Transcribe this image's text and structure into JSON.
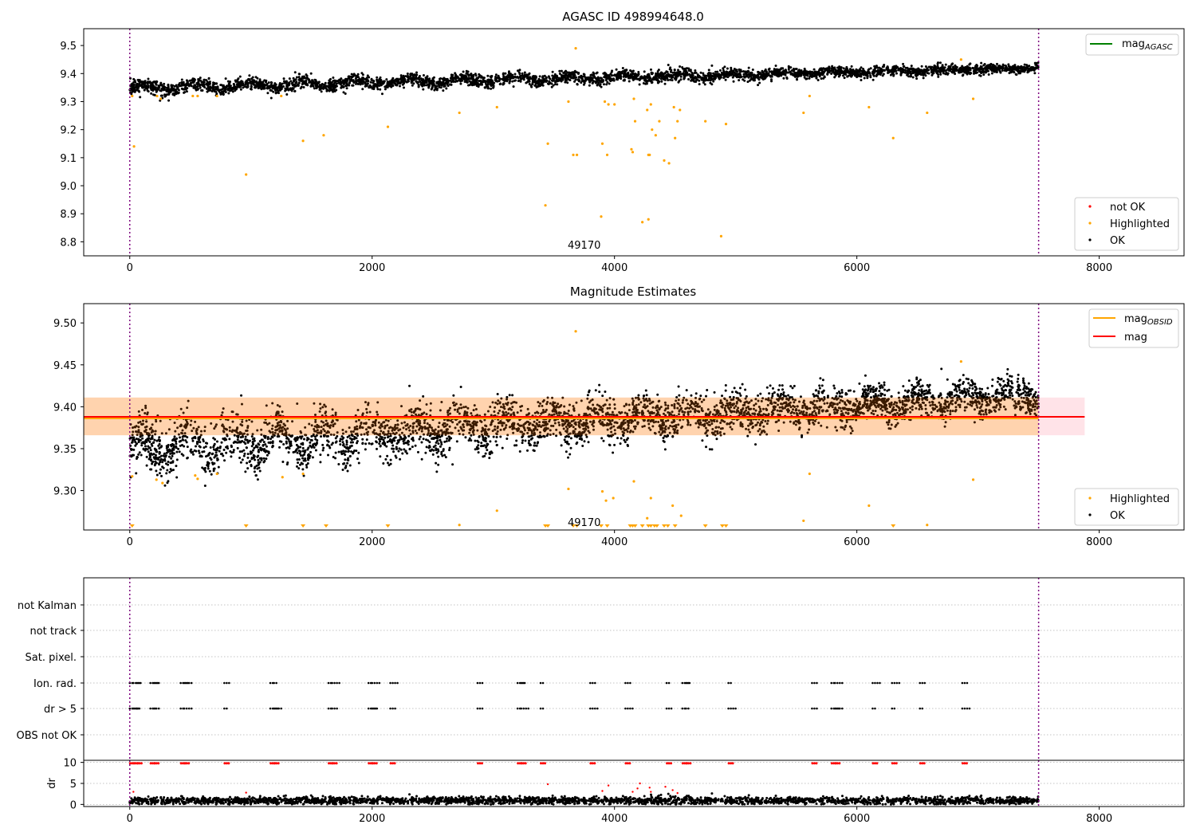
{
  "chart_data": [
    {
      "id": "agasc",
      "type": "scatter",
      "title": "AGASC ID 498994648.0",
      "xlim": [
        -380,
        8700
      ],
      "ylim": [
        8.75,
        9.56
      ],
      "xticks": [
        "0",
        "2000",
        "4000",
        "6000",
        "8000"
      ],
      "yticks": [
        "8.8",
        "8.9",
        "9.0",
        "9.1",
        "9.2",
        "9.3",
        "9.4",
        "9.5"
      ],
      "annotation": {
        "text": "49170",
        "x": 3750,
        "y": 8.77
      },
      "vlines_x": [
        0,
        7500
      ],
      "band": {
        "x_end": 7500,
        "start_low": 9.325,
        "start_high": 9.37,
        "end_low": 9.405,
        "end_high": 9.435
      },
      "series": [
        {
          "name": "not OK",
          "color": "#ff0000",
          "points": []
        },
        {
          "name": "Highlighted",
          "color": "#ffa500",
          "points": [
            [
              20,
              9.32
            ],
            [
              35,
              9.14
            ],
            [
              225,
              9.32
            ],
            [
              255,
              9.31
            ],
            [
              520,
              9.32
            ],
            [
              560,
              9.32
            ],
            [
              720,
              9.32
            ],
            [
              960,
              9.04
            ],
            [
              1250,
              9.32
            ],
            [
              1430,
              9.16
            ],
            [
              1600,
              9.18
            ],
            [
              2130,
              9.21
            ],
            [
              2720,
              9.26
            ],
            [
              3030,
              9.28
            ],
            [
              3430,
              8.93
            ],
            [
              3450,
              9.15
            ],
            [
              3620,
              9.3
            ],
            [
              3660,
              9.11
            ],
            [
              3690,
              9.11
            ],
            [
              3680,
              9.49
            ],
            [
              3890,
              8.89
            ],
            [
              3900,
              9.15
            ],
            [
              3920,
              9.3
            ],
            [
              3940,
              9.11
            ],
            [
              3950,
              9.29
            ],
            [
              4000,
              9.29
            ],
            [
              4140,
              9.13
            ],
            [
              4150,
              9.12
            ],
            [
              4160,
              9.31
            ],
            [
              4170,
              9.23
            ],
            [
              4230,
              8.87
            ],
            [
              4280,
              8.88
            ],
            [
              4270,
              9.27
            ],
            [
              4280,
              9.11
            ],
            [
              4290,
              9.11
            ],
            [
              4300,
              9.29
            ],
            [
              4310,
              9.2
            ],
            [
              4340,
              9.18
            ],
            [
              4370,
              9.23
            ],
            [
              4410,
              9.09
            ],
            [
              4450,
              9.08
            ],
            [
              4490,
              9.28
            ],
            [
              4500,
              9.17
            ],
            [
              4520,
              9.23
            ],
            [
              4540,
              9.27
            ],
            [
              4750,
              9.23
            ],
            [
              4880,
              8.82
            ],
            [
              4920,
              9.22
            ],
            [
              5560,
              9.26
            ],
            [
              5610,
              9.32
            ],
            [
              6100,
              9.28
            ],
            [
              6300,
              9.17
            ],
            [
              6580,
              9.26
            ],
            [
              6860,
              9.45
            ],
            [
              6960,
              9.31
            ]
          ]
        },
        {
          "name": "OK",
          "color": "#000000",
          "points": []
        }
      ],
      "legend_lines": [
        {
          "label": "mag",
          "sub": "AGASC",
          "color": "#008000"
        }
      ],
      "legend_markers": [
        "not OK",
        "Highlighted",
        "OK"
      ]
    },
    {
      "id": "mag",
      "type": "scatter",
      "title": "Magnitude Estimates",
      "xlim": [
        -380,
        8700
      ],
      "ylim": [
        9.253,
        9.523
      ],
      "xticks": [
        "0",
        "2000",
        "4000",
        "6000",
        "8000"
      ],
      "yticks": [
        "9.30",
        "9.35",
        "9.40",
        "9.45",
        "9.50"
      ],
      "annotation": {
        "text": "49170",
        "x": 3750,
        "y": 9.256
      },
      "vlines_x": [
        0,
        7500
      ],
      "mag_line": 9.388,
      "mag_band": [
        9.366,
        9.411
      ],
      "mag_line_xrange": [
        -380,
        7880
      ],
      "obsid_line": 9.387,
      "obsid_band": [
        9.366,
        9.411
      ],
      "band": {
        "x_end": 7500,
        "start_low": 9.325,
        "start_high": 9.375,
        "end_low": 9.4,
        "end_high": 9.43
      },
      "series": [
        {
          "name": "Highlighted",
          "color": "#ffa500",
          "points": [
            [
              20,
              9.317
            ],
            [
              220,
              9.313
            ],
            [
              270,
              9.309
            ],
            [
              540,
              9.318
            ],
            [
              560,
              9.314
            ],
            [
              720,
              9.32
            ],
            [
              1260,
              9.316
            ],
            [
              1430,
              9.32
            ],
            [
              2720,
              9.259
            ],
            [
              3030,
              9.276
            ],
            [
              3620,
              9.302
            ],
            [
              3680,
              9.49
            ],
            [
              3900,
              9.299
            ],
            [
              3930,
              9.288
            ],
            [
              3990,
              9.291
            ],
            [
              4160,
              9.311
            ],
            [
              4270,
              9.267
            ],
            [
              4300,
              9.291
            ],
            [
              4480,
              9.282
            ],
            [
              4550,
              9.27
            ],
            [
              5560,
              9.264
            ],
            [
              5610,
              9.32
            ],
            [
              6100,
              9.282
            ],
            [
              6580,
              9.259
            ],
            [
              6860,
              9.454
            ],
            [
              6960,
              9.313
            ]
          ]
        },
        {
          "name": "OK",
          "color": "#000000",
          "points": []
        }
      ],
      "down_arrows_x": [
        20,
        960,
        1430,
        1620,
        2130,
        3430,
        3450,
        3660,
        3690,
        3890,
        3940,
        4130,
        4150,
        4170,
        4230,
        4280,
        4300,
        4330,
        4350,
        4410,
        4440,
        4500,
        4750,
        4890,
        4920,
        6300
      ],
      "legend_lines": [
        {
          "label": "mag",
          "sub": "OBSID",
          "color": "#ffa500"
        },
        {
          "label": "mag",
          "sub": "",
          "color": "#ff0000"
        }
      ],
      "legend_markers": [
        "Highlighted",
        "OK"
      ]
    },
    {
      "id": "flags",
      "type": "scatter",
      "xlim": [
        -380,
        8700
      ],
      "xticks": [
        "0",
        "2000",
        "4000",
        "6000",
        "8000"
      ],
      "vlines_x": [
        0,
        7500
      ],
      "categories": [
        "not Kalman",
        "not track",
        "Sat. pixel.",
        "Ion. rad.",
        "dr > 5",
        "OBS not OK"
      ],
      "flag_x": [
        20,
        50,
        80,
        190,
        220,
        440,
        470,
        800,
        1180,
        1210,
        1660,
        1690,
        1990,
        2020,
        2170,
        2890,
        3220,
        3250,
        3410,
        3820,
        4110,
        4450,
        4580,
        4610,
        4960,
        5650,
        5810,
        5840,
        6150,
        6310,
        6540,
        6890
      ],
      "flag_rows": [
        "Ion. rad.",
        "dr > 5"
      ]
    },
    {
      "id": "dr",
      "type": "scatter",
      "ylabel": "dr",
      "xlim": [
        -380,
        8700
      ],
      "ylim": [
        -0.5,
        10.5
      ],
      "xticks": [
        "0",
        "2000",
        "4000",
        "6000",
        "8000"
      ],
      "yticks": [
        "0",
        "5",
        "10"
      ],
      "vlines_x": [
        0,
        7500
      ],
      "high_x": [
        20,
        50,
        80,
        190,
        220,
        440,
        470,
        800,
        1180,
        1210,
        1660,
        1690,
        1990,
        2020,
        2170,
        2890,
        3220,
        3250,
        3410,
        3820,
        4110,
        4450,
        4580,
        4610,
        4960,
        5650,
        5810,
        5840,
        6150,
        6310,
        6540,
        6890
      ],
      "high_value": 9.8,
      "mid_points": [
        [
          30,
          3.0
        ],
        [
          960,
          2.8
        ],
        [
          3450,
          4.8
        ],
        [
          3900,
          3.2
        ],
        [
          3950,
          4.5
        ],
        [
          4150,
          3.0
        ],
        [
          4190,
          3.8
        ],
        [
          4210,
          5.0
        ],
        [
          4290,
          4.0
        ],
        [
          4300,
          3.0
        ],
        [
          4420,
          4.2
        ],
        [
          4480,
          3.4
        ],
        [
          4520,
          2.7
        ]
      ]
    }
  ]
}
